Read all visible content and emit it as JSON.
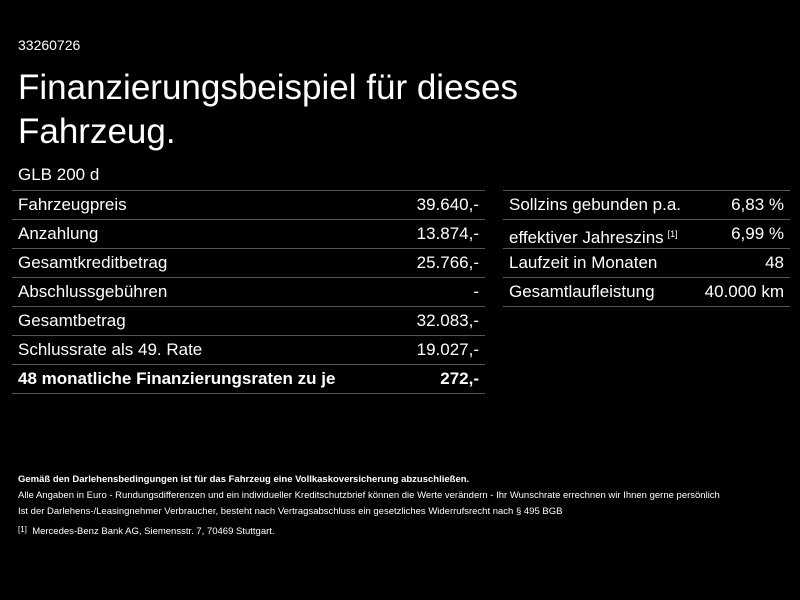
{
  "header": {
    "id": "33260726",
    "title": "Finanzierungsbeispiel für dieses Fahrzeug.",
    "model": "GLB 200 d"
  },
  "left_table": {
    "rows": [
      [
        "Fahrzeugpreis",
        "39.640,-"
      ],
      [
        "Anzahlung",
        "13.874,-"
      ],
      [
        "Gesamtkreditbetrag",
        "25.766,-"
      ],
      [
        "Abschlussgebühren",
        "-"
      ],
      [
        "Gesamtbetrag",
        "32.083,-"
      ],
      [
        "Schlussrate als 49. Rate",
        "19.027,-"
      ],
      [
        "48 monatliche Finanzierungsraten zu je",
        "272,-"
      ]
    ]
  },
  "right_table": {
    "rows": [
      [
        "Sollzins gebunden p.a.",
        "6,83 %"
      ],
      [
        "effektiver Jahreszins",
        "6,99 %"
      ],
      [
        "Laufzeit in Monaten",
        "48"
      ],
      [
        "Gesamtlaufleistung",
        "40.000 km"
      ]
    ],
    "note_ref": "[1]"
  },
  "footer": {
    "bold_note": "Gemäß den Darlehensbedingungen ist für das Fahrzeug eine Vollkaskoversicherung abzuschließen.",
    "line1": "Alle Angaben in Euro - Rundungsdifferenzen und ein individueller Kreditschutzbrief können die Werte verändern - Ihr Wunschrate errechnen wir Ihnen gerne persönlich",
    "line2": "Ist der Darlehens-/Leasingnehmer Verbraucher, besteht nach Vertragsabschluss ein gesetzliches Widerrufsrecht nach § 495 BGB",
    "footnote_marker": "[1]",
    "footnote_text": "Mercedes-Benz Bank AG, Siemensstr. 7, 70469 Stuttgart."
  }
}
